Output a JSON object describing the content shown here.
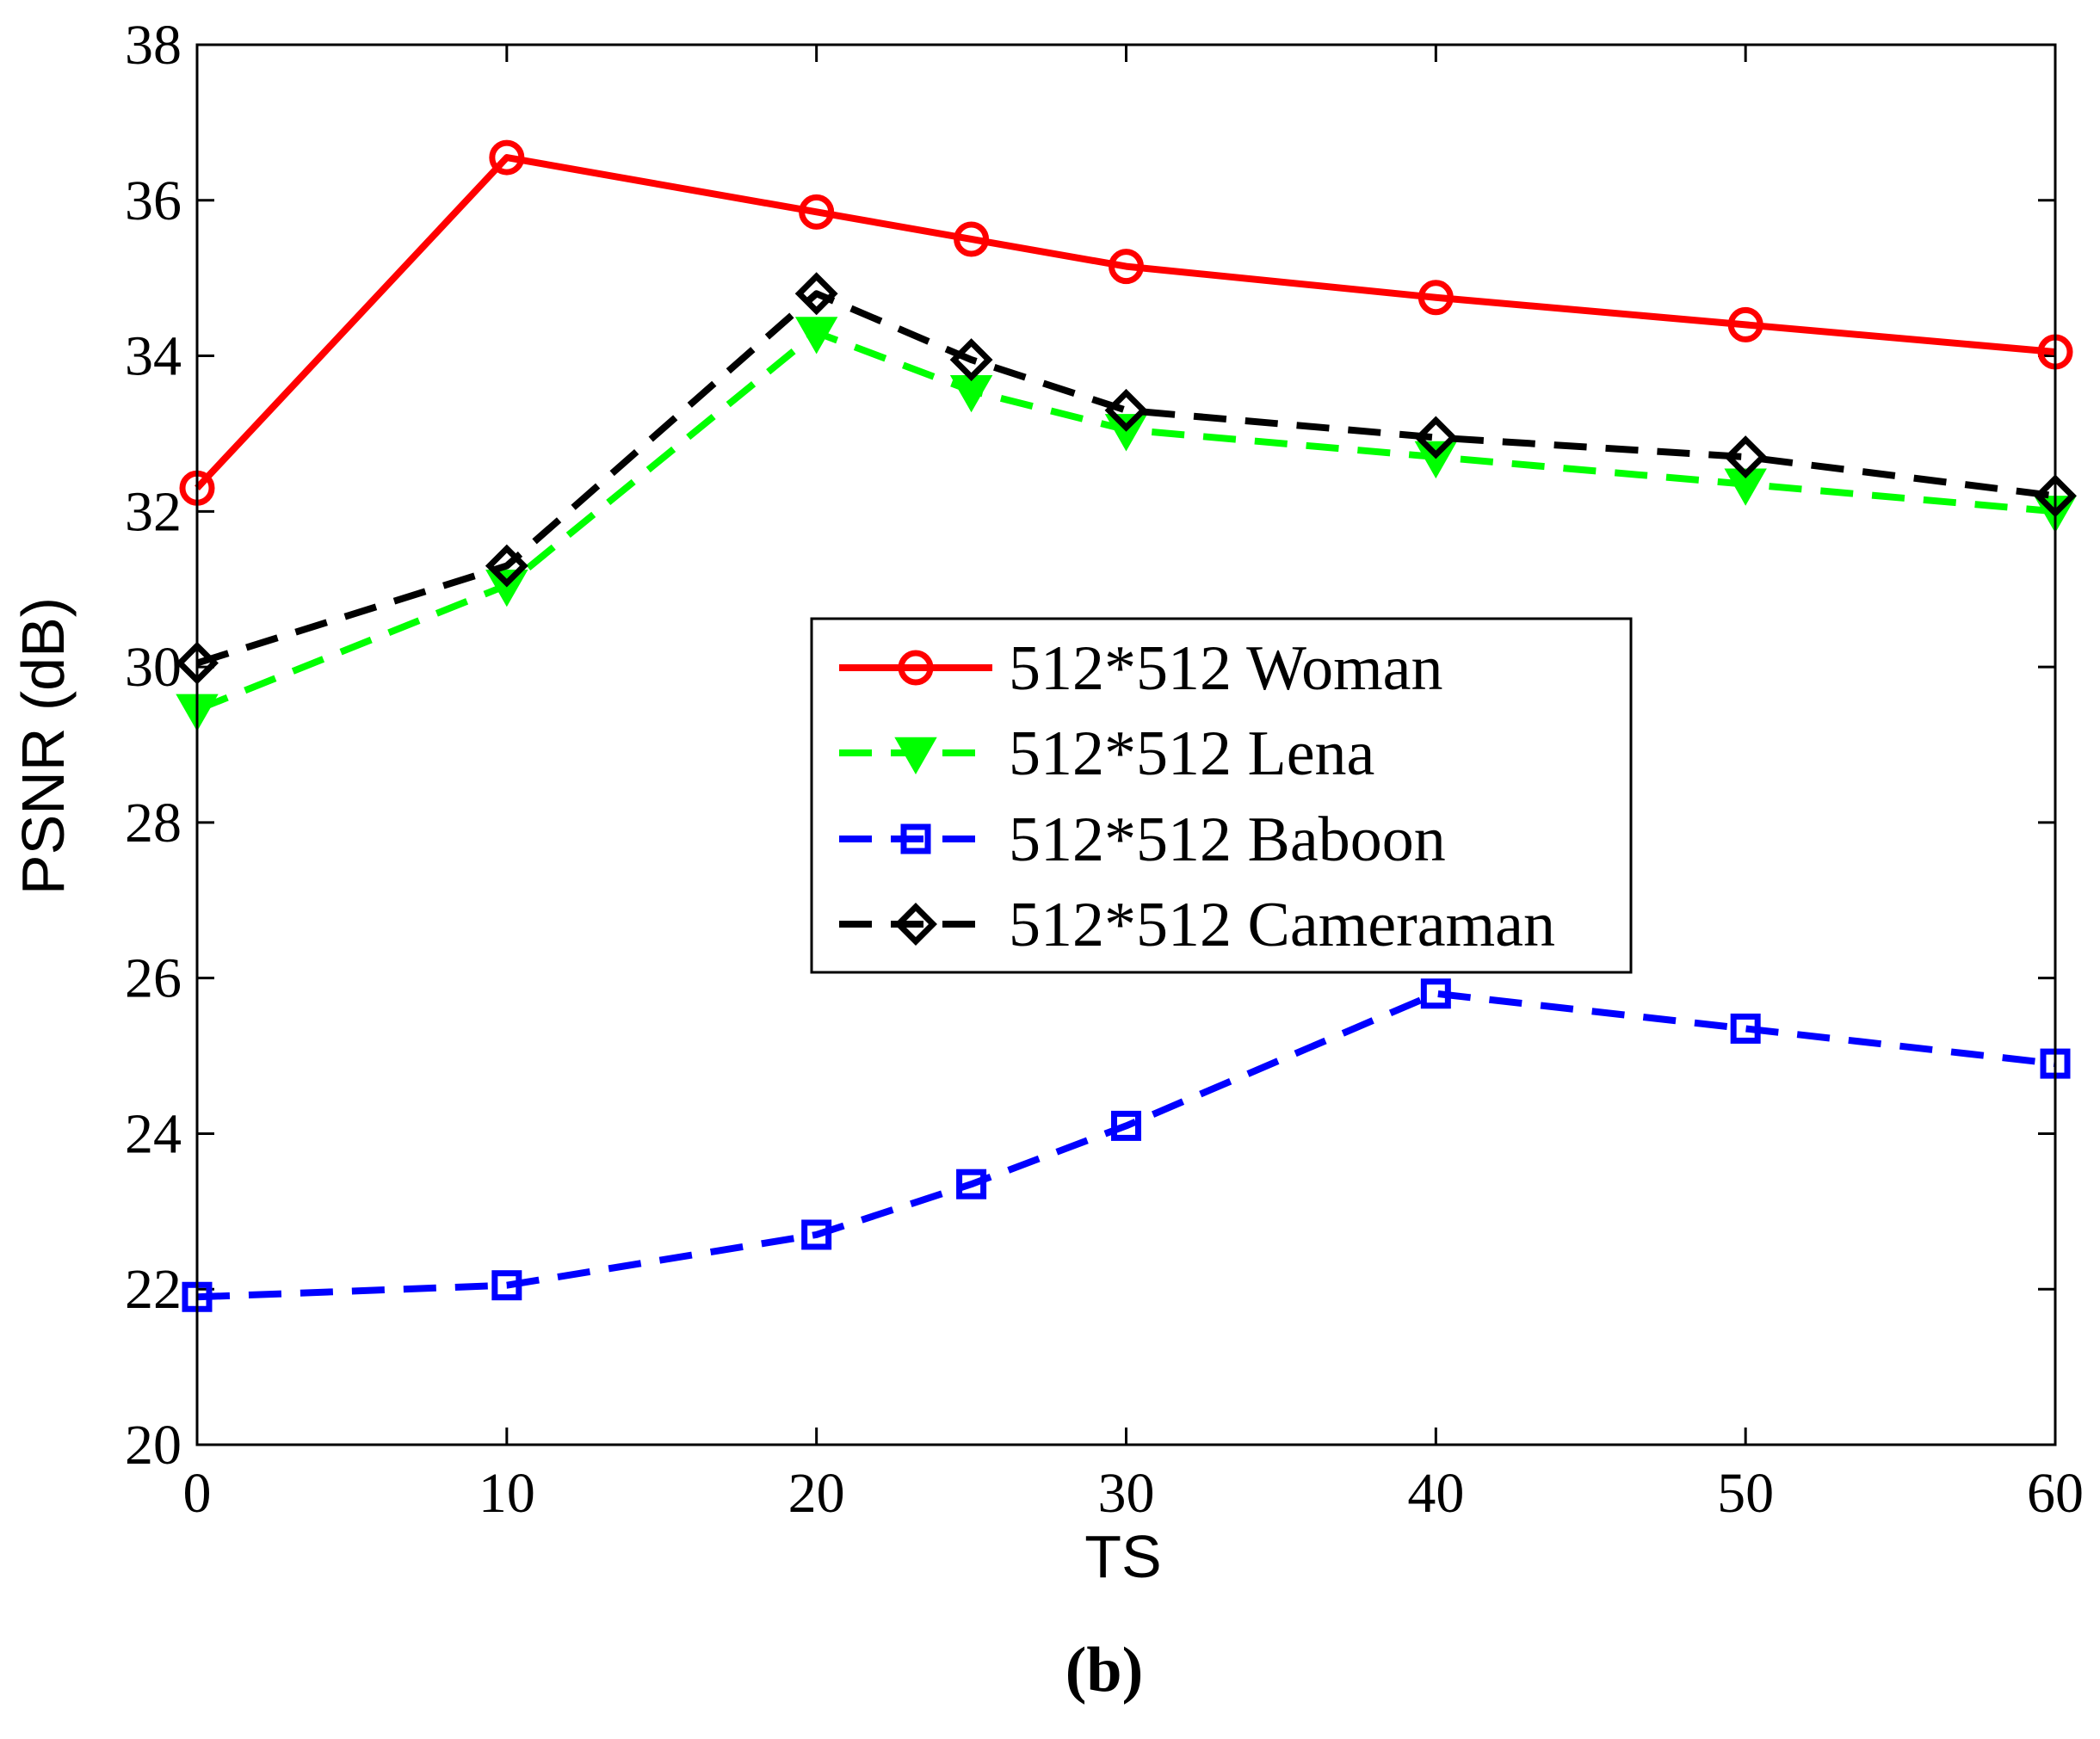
{
  "chart_data": {
    "type": "line",
    "title": "",
    "xlabel": "TS",
    "ylabel": "PSNR (dB)",
    "panel_label": "(b)",
    "x": [
      0,
      10,
      20,
      25,
      30,
      40,
      50,
      60
    ],
    "xlim": [
      0,
      60
    ],
    "ylim": [
      20,
      38
    ],
    "xticks": [
      0,
      10,
      20,
      30,
      40,
      50,
      60
    ],
    "yticks": [
      20,
      22,
      24,
      26,
      28,
      30,
      32,
      34,
      36,
      38
    ],
    "grid": false,
    "legend_position": "center-right",
    "series": [
      {
        "name": "512*512 Woman",
        "color": "#ff0000",
        "marker": "circle",
        "line": "solid",
        "values": [
          32.3,
          36.55,
          35.85,
          35.5,
          35.15,
          34.75,
          34.4,
          34.05
        ]
      },
      {
        "name": "512*512 Lena",
        "color": "#00ff00",
        "marker": "triangle-down",
        "line": "dashed",
        "values": [
          29.45,
          31.05,
          34.3,
          33.55,
          33.05,
          32.7,
          32.35,
          32.0
        ]
      },
      {
        "name": "512*512 Baboon",
        "color": "#0000ff",
        "marker": "square",
        "line": "dashed",
        "values": [
          21.9,
          22.05,
          22.7,
          23.35,
          24.1,
          25.8,
          25.35,
          24.9
        ]
      },
      {
        "name": "512*512 Cameraman",
        "color": "#000000",
        "marker": "diamond",
        "line": "dashed",
        "values": [
          30.05,
          31.3,
          34.8,
          33.95,
          33.3,
          32.95,
          32.7,
          32.2
        ]
      }
    ]
  }
}
